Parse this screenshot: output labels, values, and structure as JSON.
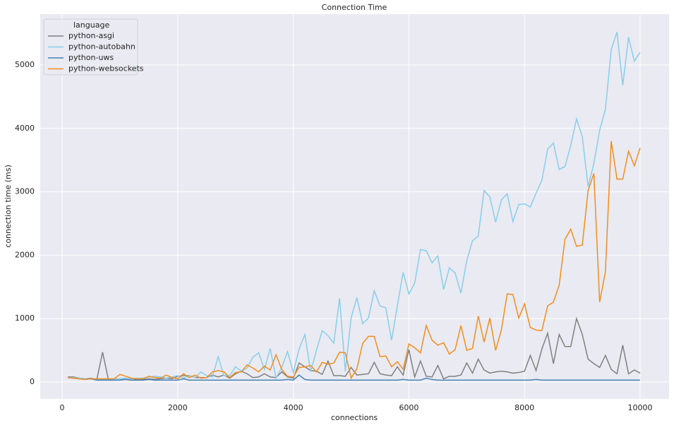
{
  "chart_data": {
    "type": "line",
    "title": "Connection Time",
    "x_label": "connections",
    "y_label": "connection time (ms)",
    "legend_title": "language",
    "legend_position": "upper left",
    "grid": true,
    "xlim": [
      -379,
      10501
    ],
    "ylim": [
      -267,
      5802
    ],
    "xticks": [
      0,
      2000,
      4000,
      6000,
      8000,
      10000
    ],
    "yticks": [
      0,
      1000,
      2000,
      3000,
      4000,
      5000
    ],
    "x": [
      100,
      200,
      300,
      400,
      500,
      600,
      700,
      800,
      900,
      1000,
      1100,
      1200,
      1300,
      1400,
      1500,
      1600,
      1700,
      1800,
      1900,
      2000,
      2100,
      2200,
      2300,
      2400,
      2500,
      2600,
      2700,
      2800,
      2900,
      3000,
      3100,
      3200,
      3300,
      3400,
      3500,
      3600,
      3700,
      3800,
      3900,
      4000,
      4100,
      4200,
      4300,
      4400,
      4500,
      4600,
      4700,
      4800,
      4900,
      5000,
      5100,
      5200,
      5300,
      5400,
      5500,
      5600,
      5700,
      5800,
      5900,
      6000,
      6100,
      6200,
      6300,
      6400,
      6500,
      6600,
      6700,
      6800,
      6900,
      7000,
      7100,
      7200,
      7300,
      7400,
      7500,
      7600,
      7700,
      7800,
      7900,
      8000,
      8100,
      8200,
      8300,
      8400,
      8500,
      8600,
      8700,
      8800,
      8900,
      9000,
      9100,
      9200,
      9300,
      9400,
      9500,
      9600,
      9700,
      9800,
      9900,
      10000
    ],
    "series": [
      {
        "name": "python-asgi",
        "color": "#808080",
        "values": [
          80,
          80,
          60,
          50,
          60,
          40,
          470,
          40,
          40,
          50,
          40,
          30,
          40,
          40,
          50,
          40,
          50,
          60,
          50,
          90,
          100,
          100,
          70,
          70,
          70,
          110,
          80,
          110,
          60,
          130,
          170,
          130,
          70,
          80,
          130,
          80,
          70,
          160,
          80,
          60,
          300,
          240,
          180,
          170,
          120,
          330,
          100,
          100,
          90,
          230,
          110,
          120,
          130,
          310,
          130,
          110,
          100,
          240,
          110,
          510,
          80,
          330,
          90,
          80,
          260,
          50,
          90,
          90,
          110,
          300,
          140,
          360,
          190,
          140,
          160,
          170,
          160,
          140,
          150,
          170,
          420,
          180,
          520,
          770,
          290,
          750,
          560,
          560,
          1000,
          750,
          360,
          290,
          230,
          420,
          200,
          130,
          580,
          130,
          190,
          140
        ]
      },
      {
        "name": "python-autobahn",
        "color": "#87ceeb",
        "values": [
          70,
          70,
          60,
          50,
          50,
          40,
          40,
          40,
          40,
          50,
          60,
          50,
          60,
          60,
          80,
          90,
          80,
          60,
          80,
          100,
          60,
          100,
          70,
          160,
          100,
          80,
          400,
          100,
          100,
          240,
          170,
          220,
          390,
          460,
          200,
          530,
          60,
          230,
          480,
          150,
          520,
          750,
          160,
          500,
          810,
          730,
          610,
          1320,
          170,
          1010,
          1330,
          920,
          1010,
          1440,
          1200,
          1170,
          660,
          1200,
          1730,
          1390,
          1560,
          2090,
          2070,
          1880,
          1990,
          1460,
          1800,
          1720,
          1400,
          1910,
          2230,
          2300,
          3020,
          2920,
          2520,
          2870,
          2970,
          2530,
          2800,
          2810,
          2760,
          2980,
          3180,
          3670,
          3770,
          3350,
          3400,
          3730,
          4150,
          3870,
          3080,
          3450,
          3970,
          4300,
          5240,
          5520,
          4680,
          5440,
          5060,
          5200
        ]
      },
      {
        "name": "python-uws",
        "color": "#4682b4",
        "values": [
          70,
          60,
          50,
          40,
          50,
          30,
          30,
          30,
          30,
          30,
          40,
          30,
          30,
          30,
          40,
          30,
          30,
          30,
          30,
          30,
          50,
          30,
          30,
          30,
          30,
          30,
          30,
          30,
          30,
          30,
          30,
          30,
          30,
          30,
          30,
          30,
          30,
          30,
          40,
          30,
          110,
          40,
          30,
          30,
          30,
          30,
          30,
          30,
          30,
          30,
          30,
          30,
          30,
          30,
          30,
          30,
          30,
          30,
          40,
          30,
          30,
          30,
          60,
          40,
          30,
          30,
          30,
          30,
          30,
          30,
          30,
          30,
          30,
          30,
          30,
          30,
          30,
          30,
          30,
          30,
          30,
          40,
          30,
          30,
          30,
          30,
          30,
          30,
          30,
          30,
          30,
          30,
          30,
          30,
          30,
          30,
          30,
          30,
          30,
          30
        ]
      },
      {
        "name": "python-websockets",
        "color": "#f28e1c",
        "values": [
          70,
          60,
          50,
          40,
          50,
          50,
          50,
          50,
          50,
          120,
          90,
          60,
          50,
          50,
          90,
          70,
          60,
          110,
          70,
          50,
          130,
          70,
          110,
          60,
          70,
          160,
          180,
          160,
          70,
          150,
          160,
          270,
          220,
          160,
          250,
          190,
          430,
          200,
          90,
          80,
          230,
          240,
          260,
          160,
          310,
          280,
          300,
          470,
          460,
          60,
          210,
          610,
          720,
          720,
          400,
          410,
          240,
          320,
          200,
          600,
          540,
          460,
          890,
          660,
          580,
          620,
          440,
          510,
          890,
          500,
          530,
          1040,
          630,
          1010,
          500,
          820,
          1390,
          1380,
          1010,
          1230,
          860,
          820,
          810,
          1200,
          1260,
          1530,
          2250,
          2410,
          2140,
          2160,
          3020,
          3290,
          1260,
          1740,
          3800,
          3200,
          3200,
          3640,
          3410,
          3690
        ]
      }
    ]
  }
}
